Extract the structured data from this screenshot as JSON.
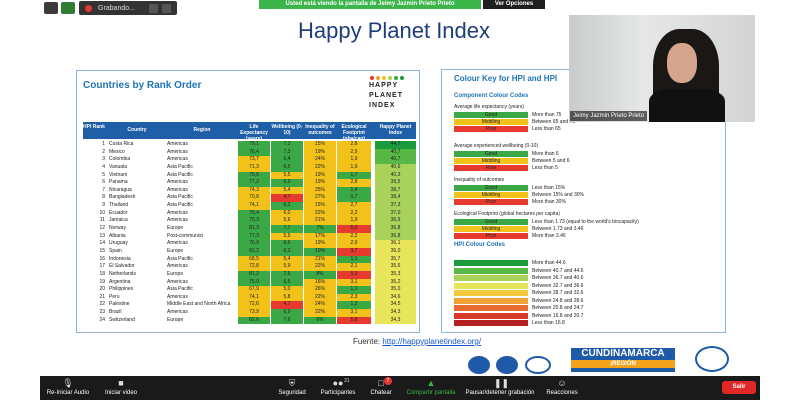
{
  "top": {
    "recording_label": "Grabando...",
    "share_banner": "Usted está viendo la pantalla de Jeimy Jazmin Prieto Prieto",
    "view_options": "Ver Opciones"
  },
  "slide": {
    "title": "Happy Planet Index",
    "left_card": {
      "title": "Countries by Rank Order",
      "logo_text": [
        "HAPPY",
        "PLANET",
        "INDEX"
      ],
      "headers": [
        "HPI Rank",
        "Country",
        "Region",
        "Life Expectancy (years)",
        "Wellbeing (0-10)",
        "Inequality of outcomes",
        "Ecological Footprint (gha/cap)",
        "Happy Planet Index"
      ],
      "rows": [
        {
          "rank": "1",
          "country": "Costa Rica",
          "region": "Americas",
          "life": "79,1",
          "well": "7,3",
          "ineq": "15%",
          "foot": "2,8",
          "hpi": "44,7"
        },
        {
          "rank": "2",
          "country": "Mexico",
          "region": "Americas",
          "life": "76,4",
          "well": "7,3",
          "ineq": "19%",
          "foot": "2,9",
          "hpi": "40,7"
        },
        {
          "rank": "3",
          "country": "Colombia",
          "region": "Americas",
          "life": "73,7",
          "well": "6,4",
          "ineq": "24%",
          "foot": "1,9",
          "hpi": "40,7"
        },
        {
          "rank": "4",
          "country": "Vanuatu",
          "region": "Asia Pacific",
          "life": "71,3",
          "well": "6,5",
          "ineq": "22%",
          "foot": "1,9",
          "hpi": "40,6"
        },
        {
          "rank": "5",
          "country": "Vietnam",
          "region": "Asia Pacific",
          "life": "75,5",
          "well": "5,5",
          "ineq": "19%",
          "foot": "1,7",
          "hpi": "40,3"
        },
        {
          "rank": "6",
          "country": "Panama",
          "region": "Americas",
          "life": "77,2",
          "well": "6,9",
          "ineq": "19%",
          "foot": "2,8",
          "hpi": "39,5"
        },
        {
          "rank": "7",
          "country": "Nicaragua",
          "region": "Americas",
          "life": "74,3",
          "well": "5,4",
          "ineq": "25%",
          "foot": "1,4",
          "hpi": "38,7"
        },
        {
          "rank": "8",
          "country": "Bangladesh",
          "region": "Asia Pacific",
          "life": "70,8",
          "well": "4,7",
          "ineq": "27%",
          "foot": "0,7",
          "hpi": "38,4"
        },
        {
          "rank": "9",
          "country": "Thailand",
          "region": "Asia Pacific",
          "life": "74,1",
          "well": "6,3",
          "ineq": "15%",
          "foot": "2,7",
          "hpi": "37,3"
        },
        {
          "rank": "10",
          "country": "Ecuador",
          "region": "Americas",
          "life": "75,4",
          "well": "6,0",
          "ineq": "22%",
          "foot": "2,2",
          "hpi": "37,0"
        },
        {
          "rank": "11",
          "country": "Jamaica",
          "region": "Americas",
          "life": "75,3",
          "well": "5,6",
          "ineq": "21%",
          "foot": "1,9",
          "hpi": "36,9"
        },
        {
          "rank": "12",
          "country": "Norway",
          "region": "Europe",
          "life": "81,3",
          "well": "7,7",
          "ineq": "7%",
          "foot": "5,0",
          "hpi": "36,8"
        },
        {
          "rank": "13",
          "country": "Albania",
          "region": "Post-communist",
          "life": "77,3",
          "well": "5,5",
          "ineq": "17%",
          "foot": "2,2",
          "hpi": "36,8"
        },
        {
          "rank": "14",
          "country": "Uruguay",
          "region": "Americas",
          "life": "76,9",
          "well": "6,6",
          "ineq": "19%",
          "foot": "2,9",
          "hpi": "36,1"
        },
        {
          "rank": "15",
          "country": "Spain",
          "region": "Europe",
          "life": "82,2",
          "well": "6,3",
          "ineq": "10%",
          "foot": "3,7",
          "hpi": "36,0"
        },
        {
          "rank": "16",
          "country": "Indonesia",
          "region": "Asia Pacific",
          "life": "68,5",
          "well": "5,4",
          "ineq": "21%",
          "foot": "1,1",
          "hpi": "35,7"
        },
        {
          "rank": "17",
          "country": "El Salvador",
          "region": "Americas",
          "life": "72,8",
          "well": "5,9",
          "ineq": "22%",
          "foot": "2,1",
          "hpi": "35,6"
        },
        {
          "rank": "18",
          "country": "Netherlands",
          "region": "Europe",
          "life": "81,2",
          "well": "7,5",
          "ineq": "8%",
          "foot": "5,3",
          "hpi": "35,3"
        },
        {
          "rank": "19",
          "country": "Argentina",
          "region": "Americas",
          "life": "75,9",
          "well": "6,5",
          "ineq": "16%",
          "foot": "3,1",
          "hpi": "35,2"
        },
        {
          "rank": "20",
          "country": "Philippines",
          "region": "Asia Pacific",
          "life": "67,9",
          "well": "5,0",
          "ineq": "26%",
          "foot": "1,1",
          "hpi": "35,0"
        },
        {
          "rank": "21",
          "country": "Peru",
          "region": "Americas",
          "life": "74,1",
          "well": "5,8",
          "ineq": "22%",
          "foot": "2,3",
          "hpi": "34,6"
        },
        {
          "rank": "22",
          "country": "Palestine",
          "region": "Middle East and North Africa",
          "life": "72,6",
          "well": "4,7",
          "ineq": "24%",
          "foot": "1,2",
          "hpi": "34,5"
        },
        {
          "rank": "23",
          "country": "Brazil",
          "region": "Americas",
          "life": "73,9",
          "well": "6,9",
          "ineq": "22%",
          "foot": "3,1",
          "hpi": "34,3"
        },
        {
          "rank": "24",
          "country": "Switzerland",
          "region": "Europe",
          "life": "82,6",
          "well": "7,6",
          "ineq": "6%",
          "foot": "5,8",
          "hpi": "34,3"
        }
      ]
    },
    "right_card": {
      "title": "Colour Key for HPI and HPI",
      "component_title": "Component Colour Codes",
      "sections": [
        {
          "label": "Average life expectancy (years)",
          "items": [
            {
              "level": "Good",
              "text": "More than 75"
            },
            {
              "level": "Middling",
              "text": "Between 65 and 75"
            },
            {
              "level": "Poor",
              "text": "Less than 65"
            }
          ]
        },
        {
          "label": "Average experienced wellbeing (0-10)",
          "items": [
            {
              "level": "Good",
              "text": "More than 6"
            },
            {
              "level": "Middling",
              "text": "Between 5 and 6"
            },
            {
              "level": "Poor",
              "text": "Less than 5"
            }
          ]
        },
        {
          "label": "Inequality of outcomes",
          "items": [
            {
              "level": "Good",
              "text": "Less than 15%"
            },
            {
              "level": "Middling",
              "text": "Between 15% and 30%"
            },
            {
              "level": "Poor",
              "text": "More than 30%"
            }
          ]
        },
        {
          "label": "Ecological Footprint (global hectares per capita)",
          "items": [
            {
              "level": "Good",
              "text": "Less than 1.73 (equal to the world's biocapacity)"
            },
            {
              "level": "Middling",
              "text": "Between 1.73 and 3.46"
            },
            {
              "level": "Poor",
              "text": "More than 3.46"
            }
          ]
        }
      ],
      "hpi_title": "HPI Colour Codes",
      "hpi_items": [
        "More than 44.6",
        "Between 40.7 and 44.6",
        "Between 36.7 and 40.6",
        "Between 32.7 and 36.6",
        "Between 28.7 and 32.6",
        "Between 24.8 and 28.6",
        "Between 20.8 and 24.7",
        "Between 16.8 and 20.7",
        "Less than 16.8"
      ]
    },
    "source_prefix": "Fuente: ",
    "source_link": "http://happyplanetindex.org/",
    "cund_text": "CUNDINAMARCA",
    "cund_sub": "¡REGIÓN"
  },
  "video": {
    "name": "Jeimy Jazmin Prieto Prieto"
  },
  "toolbar": {
    "audio": "Re-Iniciar Audio",
    "video": "Iniciar video",
    "security": "Seguridad",
    "participants": "Participantes",
    "participants_count": "31",
    "chat": "Chatear",
    "chat_badge": "7",
    "share": "Compartir pantalla",
    "record": "Pausar/detener grabación",
    "reactions": "Reacciones",
    "exit": "Salir"
  },
  "colors": {
    "good": "#3aa845",
    "middling": "#f2c21b",
    "poor": "#e63a2e",
    "header_blue": "#1f5fa8",
    "hpi_scale": [
      "#1a9a3b",
      "#57b845",
      "#a8d25a",
      "#e9e55a",
      "#f3c93b",
      "#f0a035",
      "#e86b30",
      "#d6382a",
      "#b51f1f"
    ]
  }
}
